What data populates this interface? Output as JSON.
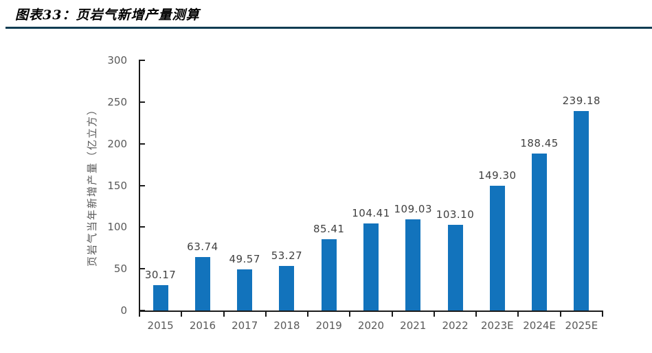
{
  "header": {
    "title": "图表33：页岩气新增产量测算"
  },
  "chart_data": {
    "type": "bar",
    "title": "图表33：页岩气新增产量测算",
    "categories": [
      "2015",
      "2016",
      "2017",
      "2018",
      "2019",
      "2020",
      "2021",
      "2022",
      "2023E",
      "2024E",
      "2025E"
    ],
    "values": [
      30.17,
      63.74,
      49.57,
      53.27,
      85.41,
      104.41,
      109.03,
      103.1,
      149.3,
      188.45,
      239.18
    ],
    "value_labels": [
      "30.17",
      "63.74",
      "49.57",
      "53.27",
      "85.41",
      "104.41",
      "109.03",
      "103.10",
      "149.30",
      "188.45",
      "239.18"
    ],
    "xlabel": "",
    "ylabel": "页岩气当年新增产量（亿立方）",
    "ylim": [
      0,
      300
    ],
    "yticks": [
      0,
      50,
      100,
      150,
      200,
      250,
      300
    ],
    "grid": false,
    "legend": "none",
    "colors": {
      "bar": "#1273bc",
      "axis": "#1a1a1a",
      "tick_label": "#595959",
      "axis_title": "#595959",
      "data_label": "#404040",
      "title_rule": "#0e3c52",
      "title_text": "#000000",
      "background": "#ffffff"
    }
  }
}
